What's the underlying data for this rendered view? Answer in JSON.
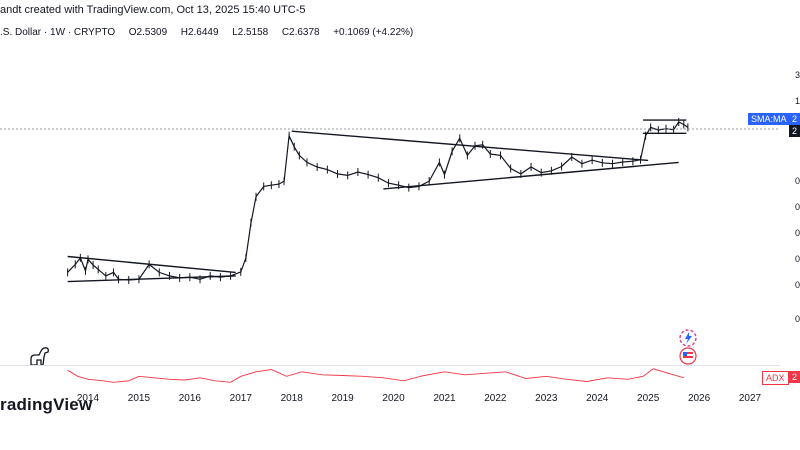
{
  "header": {
    "author_line": "andt created with TradingView.com, Oct 13, 2025 15:40 UTC-5",
    "symbol_line": ".S. Dollar · 1W · CRYPTO",
    "ohlc": {
      "open": "O2.5309",
      "high": "H2.6449",
      "low": "L2.5158",
      "close": "C2.6378",
      "change": "+0.1069 (+4.22%)"
    }
  },
  "right_axis": {
    "labels": [
      "3",
      "1",
      "",
      "",
      "",
      "0",
      "0",
      "0",
      "0",
      "0",
      "0"
    ],
    "price_label": "2",
    "sma_label": "SMA:MA",
    "sma_value": "2",
    "adx_label": "ADX",
    "adx_value": "2"
  },
  "logo": "radingView",
  "colors": {
    "candle": "#131722",
    "trendline": "#131722",
    "adx": "#f23645",
    "sma_badge": "#2962ff",
    "adx_badge": "#f23645",
    "price_line": "#787b86"
  },
  "chart_data": {
    "type": "line",
    "title": "",
    "xlabel": "",
    "ylabel": "",
    "x_ticks": [
      "2014",
      "2015",
      "2016",
      "2017",
      "2018",
      "2019",
      "2020",
      "2021",
      "2022",
      "2023",
      "2024",
      "2025",
      "2026",
      "2027"
    ],
    "series": [
      {
        "values": [
          [
            2013.6,
            0.0042
          ],
          [
            2013.75,
            0.006
          ],
          [
            2013.85,
            0.008
          ],
          [
            2013.95,
            0.0045
          ],
          [
            2014.0,
            0.0075
          ],
          [
            2014.1,
            0.0058
          ],
          [
            2014.2,
            0.0048
          ],
          [
            2014.35,
            0.0036
          ],
          [
            2014.5,
            0.0042
          ],
          [
            2014.6,
            0.0031
          ],
          [
            2014.8,
            0.003
          ],
          [
            2015.0,
            0.0031
          ],
          [
            2015.2,
            0.006
          ],
          [
            2015.4,
            0.0042
          ],
          [
            2015.6,
            0.0036
          ],
          [
            2015.8,
            0.0033
          ],
          [
            2016.0,
            0.0034
          ],
          [
            2016.2,
            0.0031
          ],
          [
            2016.4,
            0.0036
          ],
          [
            2016.6,
            0.0034
          ],
          [
            2016.8,
            0.0036
          ],
          [
            2017.0,
            0.0043
          ],
          [
            2017.1,
            0.008
          ],
          [
            2017.2,
            0.038
          ],
          [
            2017.3,
            0.12
          ],
          [
            2017.45,
            0.19
          ],
          [
            2017.6,
            0.2
          ],
          [
            2017.75,
            0.21
          ],
          [
            2017.85,
            0.24
          ],
          [
            2017.95,
            1.8
          ],
          [
            2018.05,
            1.1
          ],
          [
            2018.15,
            0.75
          ],
          [
            2018.3,
            0.55
          ],
          [
            2018.5,
            0.45
          ],
          [
            2018.7,
            0.4
          ],
          [
            2018.9,
            0.33
          ],
          [
            2019.1,
            0.31
          ],
          [
            2019.3,
            0.36
          ],
          [
            2019.5,
            0.32
          ],
          [
            2019.7,
            0.28
          ],
          [
            2019.9,
            0.22
          ],
          [
            2020.1,
            0.2
          ],
          [
            2020.3,
            0.18
          ],
          [
            2020.5,
            0.19
          ],
          [
            2020.7,
            0.24
          ],
          [
            2020.9,
            0.55
          ],
          [
            2021.0,
            0.32
          ],
          [
            2021.15,
            0.9
          ],
          [
            2021.3,
            1.6
          ],
          [
            2021.45,
            0.75
          ],
          [
            2021.6,
            1.15
          ],
          [
            2021.75,
            1.2
          ],
          [
            2021.9,
            0.8
          ],
          [
            2022.1,
            0.75
          ],
          [
            2022.3,
            0.42
          ],
          [
            2022.5,
            0.33
          ],
          [
            2022.7,
            0.45
          ],
          [
            2022.9,
            0.35
          ],
          [
            2023.1,
            0.38
          ],
          [
            2023.3,
            0.46
          ],
          [
            2023.5,
            0.7
          ],
          [
            2023.7,
            0.52
          ],
          [
            2023.9,
            0.61
          ],
          [
            2024.1,
            0.54
          ],
          [
            2024.3,
            0.52
          ],
          [
            2024.5,
            0.56
          ],
          [
            2024.7,
            0.58
          ],
          [
            2024.85,
            0.62
          ],
          [
            2024.95,
            1.8
          ],
          [
            2025.05,
            2.6
          ],
          [
            2025.2,
            2.3
          ],
          [
            2025.35,
            2.45
          ],
          [
            2025.5,
            2.35
          ],
          [
            2025.6,
            3.3
          ],
          [
            2025.7,
            2.95
          ],
          [
            2025.78,
            2.6
          ]
        ]
      },
      {
        "values": [
          [
            2013.6,
            32
          ],
          [
            2013.8,
            24
          ],
          [
            2014.0,
            20
          ],
          [
            2014.3,
            18
          ],
          [
            2014.5,
            16
          ],
          [
            2014.8,
            18
          ],
          [
            2015.0,
            24
          ],
          [
            2015.3,
            22
          ],
          [
            2015.6,
            20
          ],
          [
            2015.9,
            19
          ],
          [
            2016.2,
            22
          ],
          [
            2016.5,
            18
          ],
          [
            2016.8,
            16
          ],
          [
            2017.0,
            24
          ],
          [
            2017.3,
            30
          ],
          [
            2017.6,
            33
          ],
          [
            2017.9,
            24
          ],
          [
            2018.2,
            30
          ],
          [
            2018.6,
            26
          ],
          [
            2019.0,
            25
          ],
          [
            2019.4,
            24
          ],
          [
            2019.8,
            22
          ],
          [
            2020.2,
            18
          ],
          [
            2020.6,
            25
          ],
          [
            2021.0,
            30
          ],
          [
            2021.4,
            26
          ],
          [
            2021.8,
            28
          ],
          [
            2022.2,
            30
          ],
          [
            2022.6,
            21
          ],
          [
            2023.0,
            24
          ],
          [
            2023.4,
            20
          ],
          [
            2023.8,
            17
          ],
          [
            2024.2,
            22
          ],
          [
            2024.6,
            20
          ],
          [
            2024.9,
            24
          ],
          [
            2025.1,
            34
          ],
          [
            2025.4,
            28
          ],
          [
            2025.7,
            22
          ]
        ]
      }
    ],
    "y_scale": "log",
    "trendlines": [
      {
        "from": [
          2013.6,
          0.0085
        ],
        "to": [
          2016.9,
          0.0042
        ]
      },
      {
        "from": [
          2013.6,
          0.0028
        ],
        "to": [
          2016.9,
          0.0036
        ]
      },
      {
        "from": [
          2018.0,
          2.2
        ],
        "to": [
          2025.0,
          0.6
        ]
      },
      {
        "from": [
          2019.8,
          0.17
        ],
        "to": [
          2025.6,
          0.55
        ]
      },
      {
        "from": [
          2024.9,
          3.6
        ],
        "to": [
          2025.75,
          3.6
        ]
      },
      {
        "from": [
          2024.9,
          2.0
        ],
        "to": [
          2025.75,
          2.0
        ]
      }
    ],
    "grid": false
  }
}
